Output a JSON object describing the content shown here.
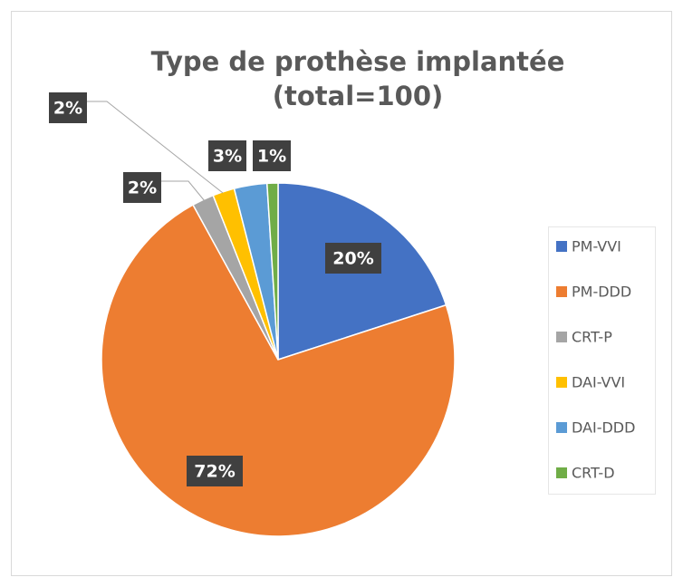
{
  "chart_data": {
    "type": "pie",
    "title": [
      "Type de prothèse implantée",
      "(total=100)"
    ],
    "categories": [
      "PM-VVI",
      "PM-DDD",
      "CRT-P",
      "DAI-VVI",
      "DAI-DDD",
      "CRT-D"
    ],
    "values": [
      20,
      72,
      2,
      2,
      3,
      1
    ],
    "value_labels": [
      "20%",
      "72%",
      "2%",
      "2%",
      "3%",
      "1%"
    ],
    "colors": [
      "#4472c4",
      "#ed7d31",
      "#a5a5a5",
      "#ffc000",
      "#5b9bd5",
      "#70ad47"
    ],
    "legend": "right"
  }
}
